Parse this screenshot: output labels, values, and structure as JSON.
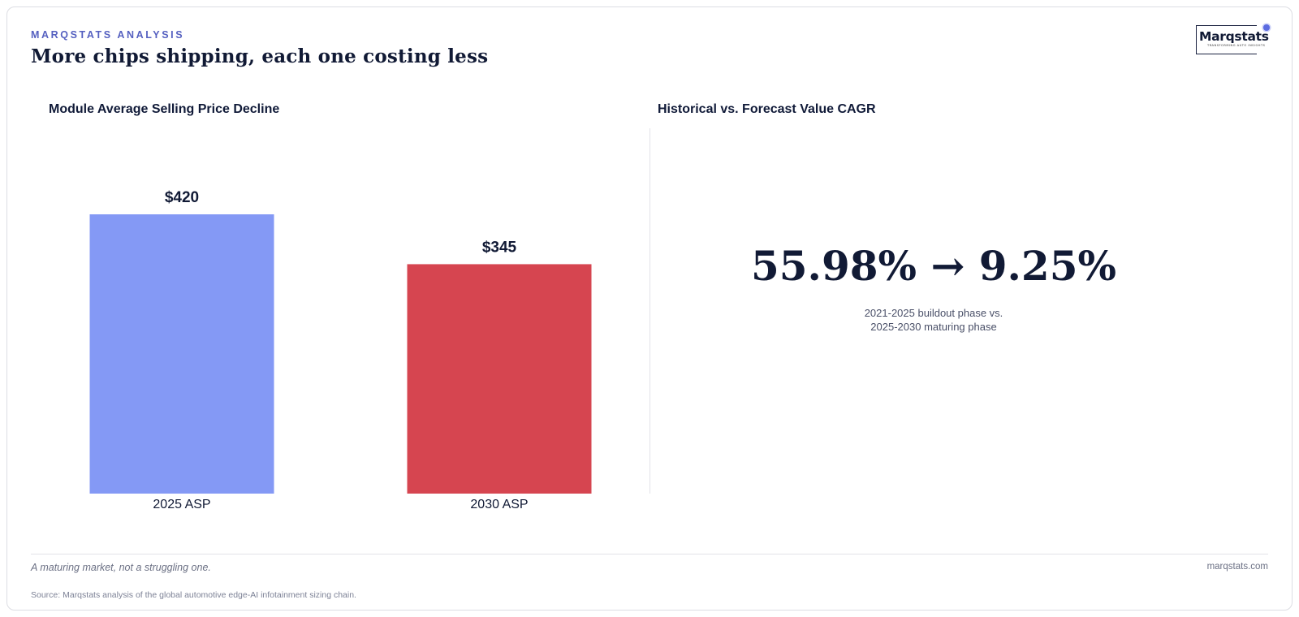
{
  "header": {
    "eyebrow": "MARQSTATS ANALYSIS",
    "headline": "More chips shipping, each one costing less"
  },
  "logo": {
    "wordmark": "Marqstats",
    "tagline": "TRANSFORMING AUTO INSIGHTS"
  },
  "left_panel": {
    "title": "Module Average Selling Price Decline"
  },
  "right_panel": {
    "title": "Historical vs. Forecast Value CAGR",
    "big_value": "55.98% → 9.25%",
    "subtitle_line1": "2021-2025 buildout phase vs.",
    "subtitle_line2": "2025-2030 maturing phase"
  },
  "chart_data": {
    "type": "bar",
    "categories": [
      "2025 ASP",
      "2030 ASP"
    ],
    "values": [
      420,
      345
    ],
    "data_labels": [
      "$420",
      "$345"
    ],
    "colors": [
      "#8499f5",
      "#d64550"
    ],
    "title": "Module Average Selling Price Decline",
    "xlabel": "",
    "ylabel": "",
    "ylim": [
      0,
      420
    ],
    "grid": false,
    "legend": "none"
  },
  "footer": {
    "note": "A maturing market, not a struggling one.",
    "site": "marqstats.com",
    "source": "Source: Marqstats analysis of the global automotive edge-AI infotainment sizing chain."
  },
  "colors": {
    "accent": "#5560c0",
    "ink": "#111a35",
    "bar_2025": "#8499f5",
    "bar_2030": "#d64550"
  }
}
